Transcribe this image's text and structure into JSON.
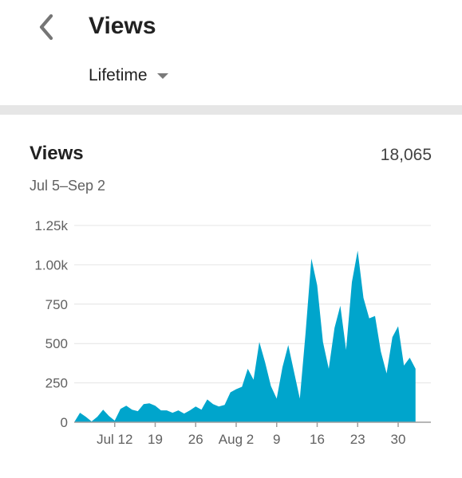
{
  "header": {
    "back_icon": "chevron-left-icon",
    "title": "Views",
    "period": {
      "selected": "Lifetime",
      "icon": "caret-down-icon"
    }
  },
  "card": {
    "title": "Views",
    "total": "18,065",
    "range": "Jul 5–Sep 2"
  },
  "colors": {
    "accent": "#00a5cc",
    "gridline": "#e4e4e4",
    "divider": "#e6e6e6"
  },
  "chart_data": {
    "type": "area",
    "title": "",
    "xlabel": "",
    "ylabel": "",
    "ylim": [
      0,
      1250
    ],
    "y_ticks": [
      0,
      250,
      500,
      750,
      1000,
      1250
    ],
    "y_tick_labels": [
      "0",
      "250",
      "500",
      "750",
      "1.00k",
      "1.25k"
    ],
    "x_tick_labels": [
      {
        "label": "Jul 12",
        "index": 7
      },
      {
        "label": "19",
        "index": 14
      },
      {
        "label": "26",
        "index": 21
      },
      {
        "label": "Aug 2",
        "index": 28
      },
      {
        "label": "9",
        "index": 35
      },
      {
        "label": "16",
        "index": 42
      },
      {
        "label": "23",
        "index": 49
      },
      {
        "label": "30",
        "index": 56
      }
    ],
    "x": [
      "Jul 5",
      "Jul 6",
      "Jul 7",
      "Jul 8",
      "Jul 9",
      "Jul 10",
      "Jul 11",
      "Jul 12",
      "Jul 13",
      "Jul 14",
      "Jul 15",
      "Jul 16",
      "Jul 17",
      "Jul 18",
      "Jul 19",
      "Jul 20",
      "Jul 21",
      "Jul 22",
      "Jul 23",
      "Jul 24",
      "Jul 25",
      "Jul 26",
      "Jul 27",
      "Jul 28",
      "Jul 29",
      "Jul 30",
      "Jul 31",
      "Aug 1",
      "Aug 2",
      "Aug 3",
      "Aug 4",
      "Aug 5",
      "Aug 6",
      "Aug 7",
      "Aug 8",
      "Aug 9",
      "Aug 10",
      "Aug 11",
      "Aug 12",
      "Aug 13",
      "Aug 14",
      "Aug 15",
      "Aug 16",
      "Aug 17",
      "Aug 18",
      "Aug 19",
      "Aug 20",
      "Aug 21",
      "Aug 22",
      "Aug 23",
      "Aug 24",
      "Aug 25",
      "Aug 26",
      "Aug 27",
      "Aug 28",
      "Aug 29",
      "Aug 30",
      "Aug 31",
      "Sep 1",
      "Sep 2"
    ],
    "series": [
      {
        "values": [
          0,
          60,
          35,
          5,
          35,
          80,
          40,
          10,
          85,
          105,
          80,
          70,
          115,
          120,
          105,
          75,
          75,
          60,
          75,
          55,
          75,
          100,
          80,
          145,
          115,
          100,
          110,
          190,
          210,
          225,
          340,
          270,
          510,
          380,
          230,
          150,
          350,
          490,
          320,
          150,
          570,
          1040,
          870,
          510,
          340,
          600,
          740,
          460,
          890,
          1090,
          790,
          660,
          675,
          450,
          310,
          540,
          610,
          360,
          410,
          340
        ]
      }
    ],
    "grid": true,
    "legend": "none"
  }
}
